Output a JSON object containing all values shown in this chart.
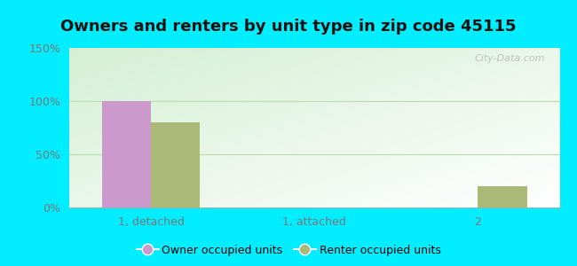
{
  "title": "Owners and renters by unit type in zip code 45115",
  "categories": [
    "1, detached",
    "1, attached",
    "2"
  ],
  "owner_values": [
    100,
    0,
    0
  ],
  "renter_values": [
    80,
    0,
    20
  ],
  "owner_color": "#cc99cc",
  "renter_color": "#aab878",
  "ylim": [
    0,
    150
  ],
  "yticks": [
    0,
    50,
    100,
    150
  ],
  "ytick_labels": [
    "0%",
    "50%",
    "100%",
    "150%"
  ],
  "bar_width": 0.3,
  "legend_owner": "Owner occupied units",
  "legend_renter": "Renter occupied units",
  "bg_outer": "#00eeff",
  "watermark": "City-Data.com",
  "title_fontsize": 13,
  "axis_fontsize": 9,
  "legend_fontsize": 9,
  "grid_color": "#ddeecc",
  "tick_color": "#777777"
}
